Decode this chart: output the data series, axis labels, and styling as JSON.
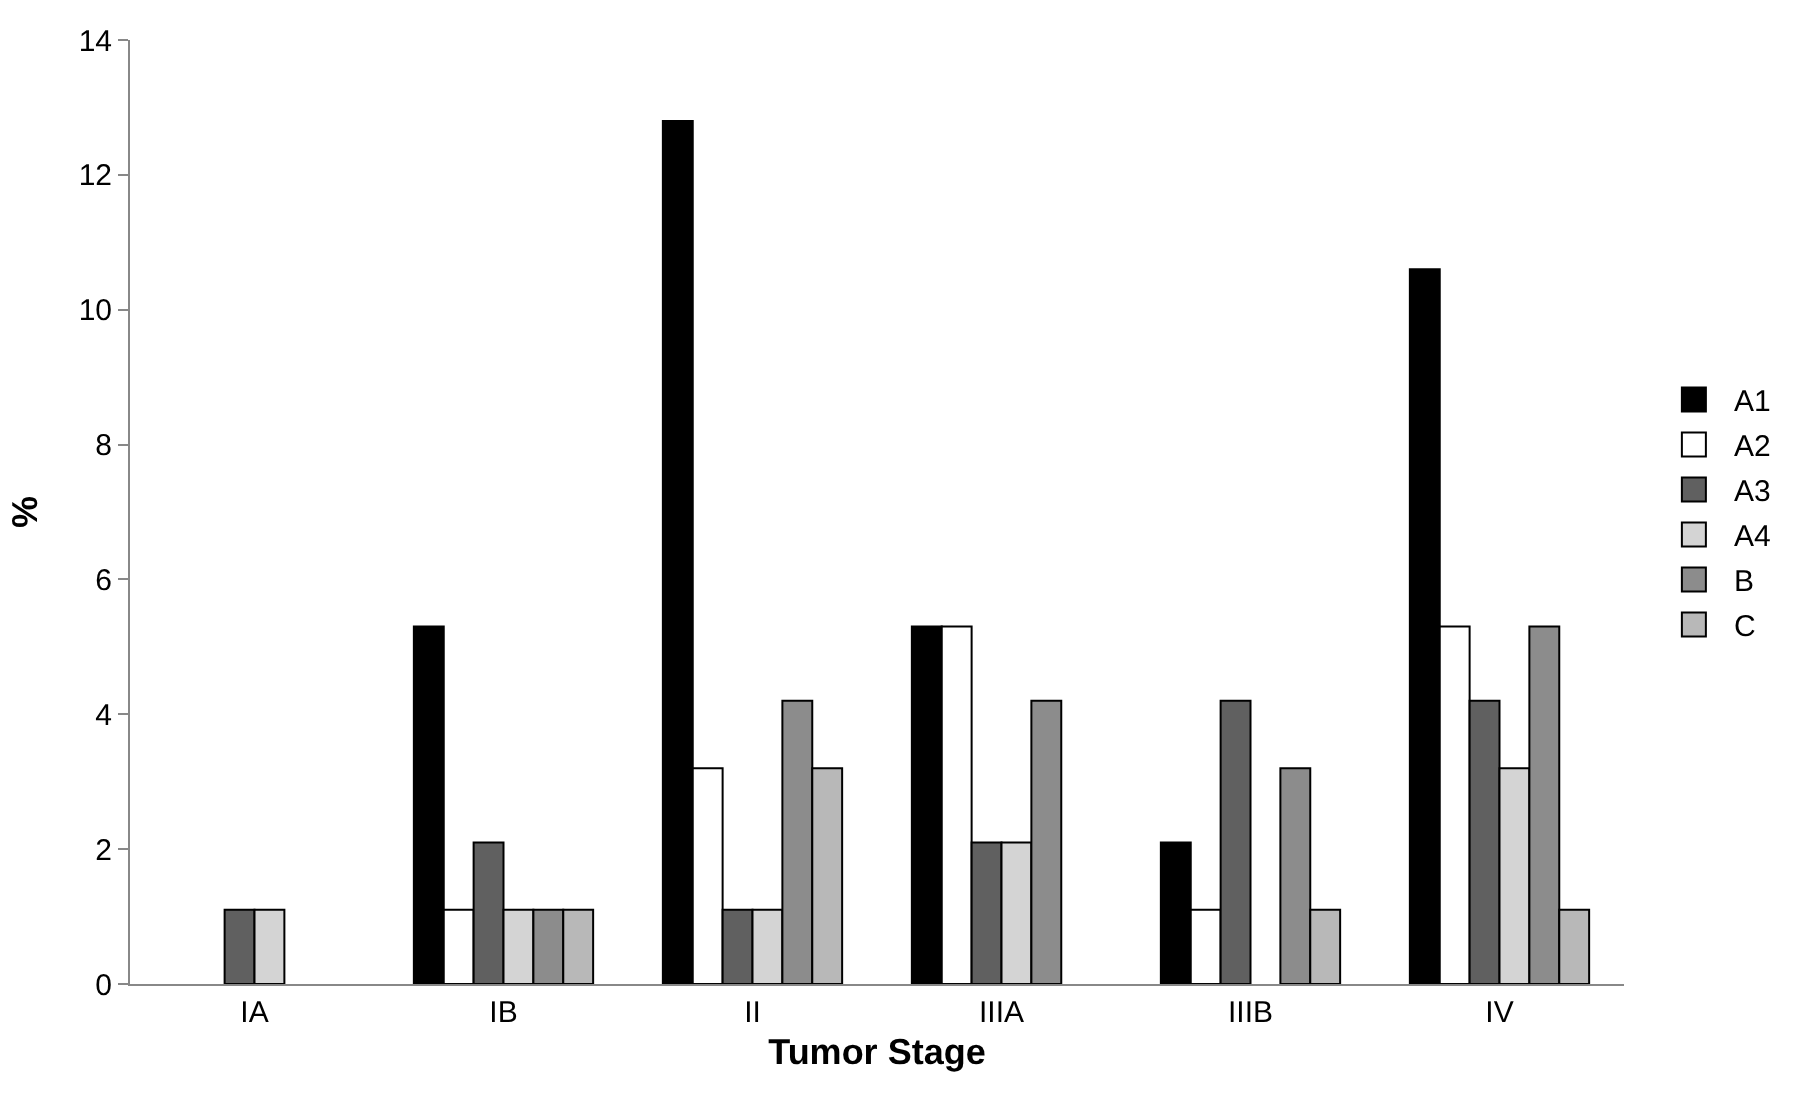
{
  "chart_data": {
    "type": "bar",
    "xlabel": "Tumor Stage",
    "ylabel": "%",
    "categories": [
      "IA",
      "IB",
      "II",
      "IIIA",
      "IIIB",
      "IV"
    ],
    "series": [
      {
        "name": "A1",
        "color": "#000000",
        "values": [
          null,
          5.3,
          12.8,
          5.3,
          2.1,
          10.6
        ]
      },
      {
        "name": "A2",
        "color": "#ffffff",
        "values": [
          null,
          1.1,
          3.2,
          5.3,
          1.1,
          5.3
        ]
      },
      {
        "name": "A3",
        "color": "#606060",
        "values": [
          1.1,
          2.1,
          1.1,
          2.1,
          4.2,
          4.2
        ]
      },
      {
        "name": "A4",
        "color": "#d4d4d4",
        "values": [
          1.1,
          1.1,
          1.1,
          2.1,
          null,
          3.2
        ]
      },
      {
        "name": "B",
        "color": "#8c8c8c",
        "values": [
          null,
          1.1,
          4.2,
          4.2,
          3.2,
          5.3
        ]
      },
      {
        "name": "C",
        "color": "#b8b8b8",
        "values": [
          null,
          1.1,
          3.2,
          null,
          1.1,
          1.1
        ]
      }
    ],
    "ylim": [
      0,
      14
    ],
    "yticks": [
      0,
      2,
      4,
      6,
      8,
      10,
      12,
      14
    ],
    "legend": "right"
  }
}
